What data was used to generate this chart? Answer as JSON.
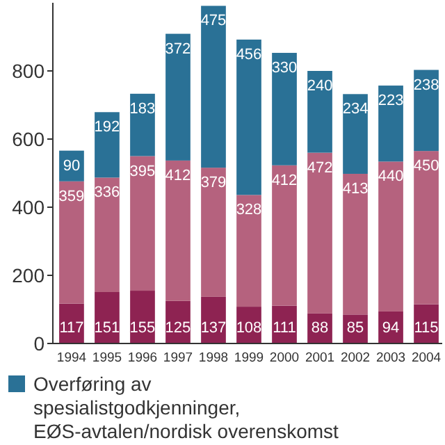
{
  "chart_data": {
    "type": "bar",
    "stacked": true,
    "categories": [
      "1994",
      "1995",
      "1996",
      "1997",
      "1998",
      "1999",
      "2000",
      "2001",
      "2002",
      "2003",
      "2004"
    ],
    "series": [
      {
        "color": "#8e2352",
        "values": [
          117,
          151,
          155,
          125,
          137,
          108,
          111,
          88,
          85,
          94,
          115
        ]
      },
      {
        "color": "#b5627e",
        "values": [
          359,
          336,
          395,
          412,
          379,
          328,
          412,
          472,
          413,
          440,
          450
        ]
      },
      {
        "name": "Overføring av spesialistgodkjenninger, EØS-avtalen/nordisk overenskomst",
        "color": "#2a7196",
        "values": [
          90,
          192,
          183,
          372,
          475,
          456,
          330,
          240,
          234,
          223,
          238
        ]
      }
    ],
    "ylim": [
      0,
      1000
    ],
    "yticks": [
      0,
      200,
      400,
      600,
      800
    ],
    "data_labels": true,
    "legend": "bottom"
  }
}
